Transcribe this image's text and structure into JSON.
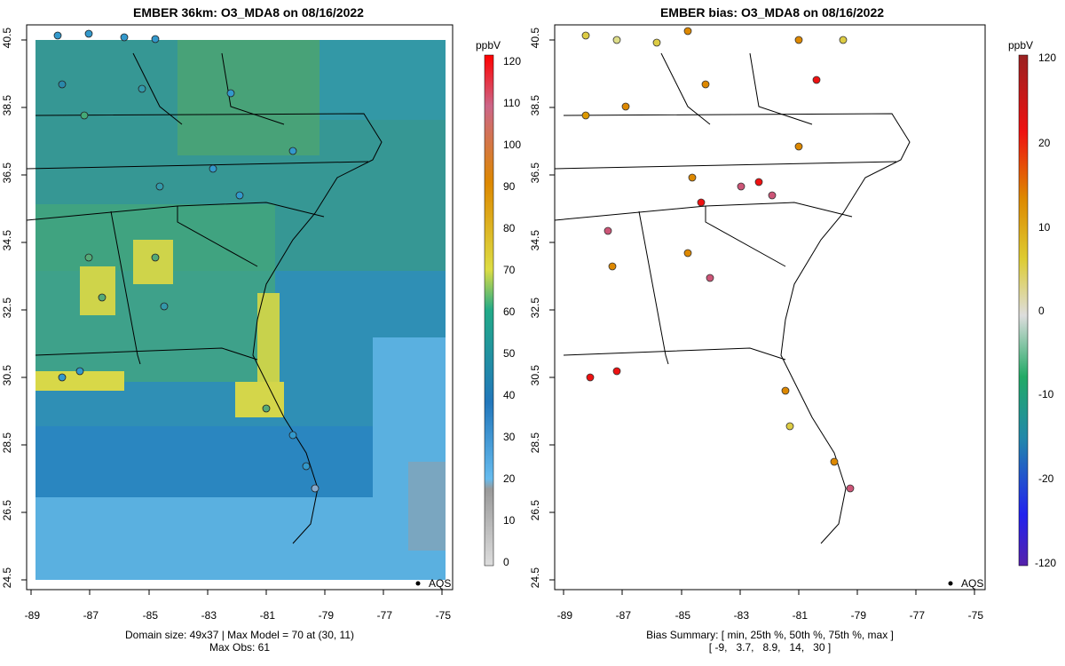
{
  "left_panel": {
    "title": "EMBER 36km: O3_MDA8 on 08/16/2022",
    "caption_line1": "Domain size: 49x37 | Max Model = 70 at (30, 11)",
    "caption_line2": "Max Obs: 61",
    "legend_unit": "ppbV",
    "legend_ticks": [
      "120",
      "110",
      "100",
      "90",
      "80",
      "70",
      "60",
      "50",
      "40",
      "30",
      "20",
      "10",
      "0"
    ],
    "marker_label": "AQS"
  },
  "right_panel": {
    "title": "EMBER bias: O3_MDA8 on 08/16/2022",
    "caption_line1": "Bias Summary: [ min, 25th %, 50th %, 75th %, max ]",
    "caption_line2": "[ -9,   3.7,   8.9,   14,   30 ]",
    "legend_unit": "ppbV",
    "legend_ticks": [
      "120",
      "20",
      "10",
      "0",
      "-10",
      "-20",
      "-120"
    ],
    "marker_label": "AQS"
  },
  "axes": {
    "x_ticks": [
      "-89",
      "-87",
      "-85",
      "-83",
      "-81",
      "-79",
      "-77",
      "-75"
    ],
    "y_ticks": [
      "40.5",
      "38.5",
      "36.5",
      "34.5",
      "32.5",
      "30.5",
      "28.5",
      "26.5",
      "24.5"
    ]
  },
  "colors": {
    "ocean_blue": "#55aadd",
    "mid_blue": "#2277bb",
    "green": "#33aa88",
    "yellow": "#dddd44",
    "site_orange": "#dd8800",
    "site_pink": "#cc5577",
    "site_red": "#ee1111",
    "site_yellow": "#ddcc33"
  }
}
